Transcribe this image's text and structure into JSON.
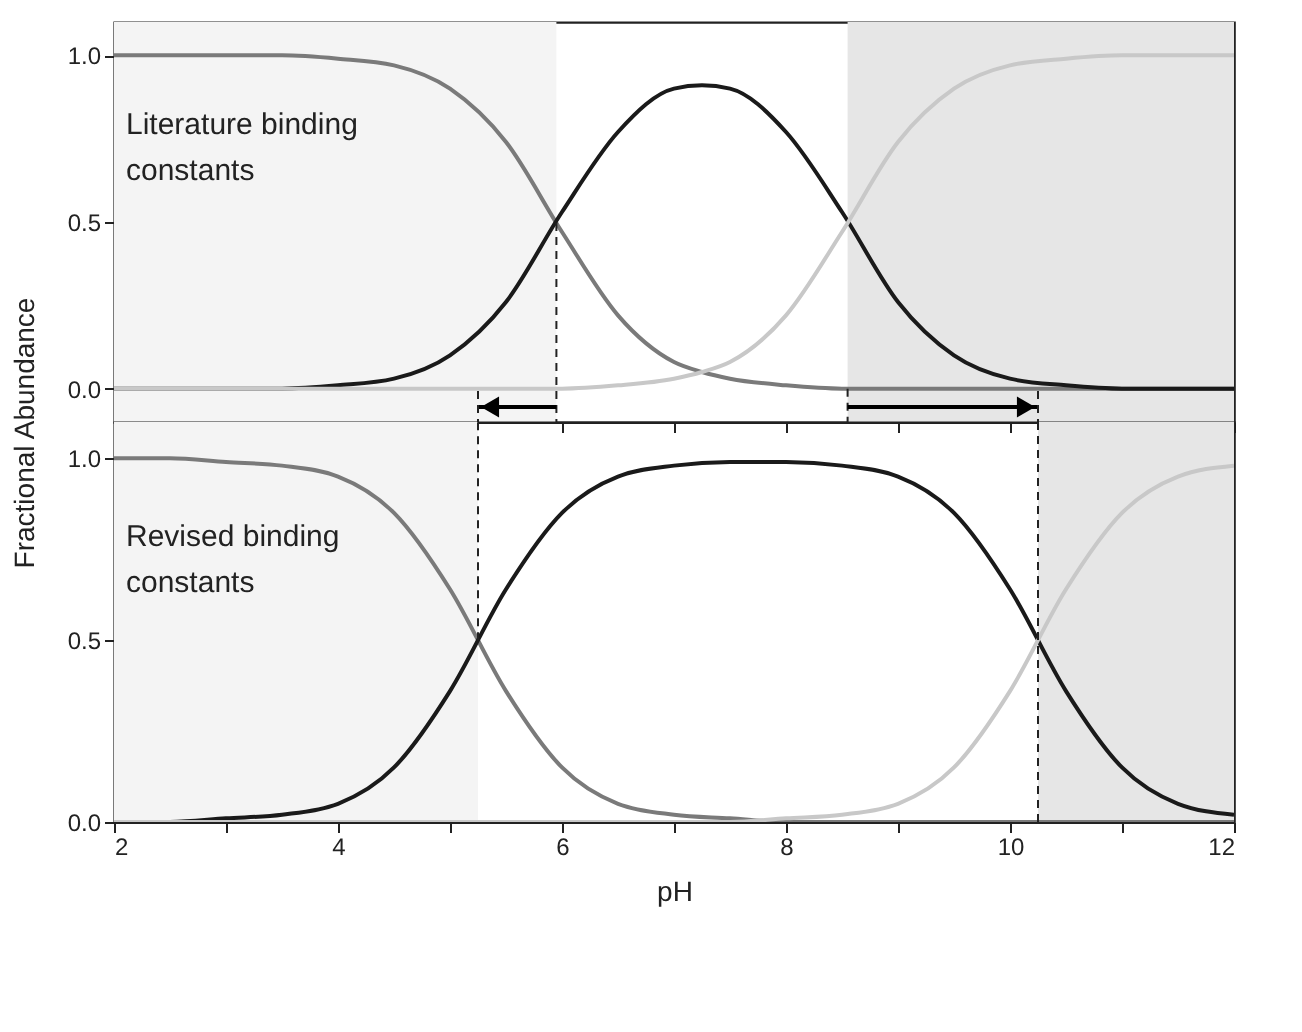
{
  "chart_data": [
    {
      "type": "line",
      "ylabel": "Fractional Abundance",
      "annotations": [
        "Literature binding constants"
      ],
      "x": [
        2,
        2.5,
        3,
        3.5,
        4,
        4.5,
        5,
        5.5,
        6,
        6.5,
        7,
        7.25,
        7.5,
        8,
        8.5,
        9,
        9.5,
        10,
        10.5,
        11,
        11.5,
        12
      ],
      "series": [
        {
          "color": "#7a7a7a",
          "values": [
            1.0,
            1.0,
            1.0,
            1.0,
            0.99,
            0.97,
            0.9,
            0.74,
            0.47,
            0.22,
            0.08,
            0.05,
            0.03,
            0.01,
            0.0,
            0.0,
            0.0,
            0.0,
            0.0,
            0.0,
            0.0,
            0.0
          ]
        },
        {
          "color": "#1a1a1a",
          "values": [
            0.0,
            0.0,
            0.0,
            0.0,
            0.01,
            0.03,
            0.1,
            0.26,
            0.53,
            0.77,
            0.9,
            0.91,
            0.9,
            0.77,
            0.53,
            0.26,
            0.1,
            0.03,
            0.01,
            0.0,
            0.0,
            0.0
          ]
        },
        {
          "color": "#c8c8c8",
          "values": [
            0.0,
            0.0,
            0.0,
            0.0,
            0.0,
            0.0,
            0.0,
            0.0,
            0.0,
            0.01,
            0.03,
            0.05,
            0.08,
            0.22,
            0.47,
            0.74,
            0.9,
            0.97,
            0.99,
            1.0,
            1.0,
            1.0
          ]
        }
      ],
      "xlim": [
        2,
        12
      ],
      "xticks": [
        2,
        {
          "value": 3,
          "label": null
        },
        4,
        {
          "value": 5,
          "label": null
        },
        6,
        {
          "value": 7,
          "label": null
        },
        8,
        {
          "value": 9,
          "label": null
        },
        10,
        {
          "value": 11,
          "label": null
        },
        12
      ],
      "ylim": [
        -0.1,
        1.1
      ],
      "yticks": [
        {
          "value": 0,
          "label": "0.0"
        },
        {
          "value": 0.5,
          "label": "0.5"
        },
        {
          "value": 1,
          "label": "1.0"
        }
      ],
      "tick_labels": "y",
      "grid": false,
      "line_style": "solid",
      "bands": [
        {
          "axis": "x",
          "from": 2,
          "to": 5.95,
          "color": "#f4f4f4"
        },
        {
          "axis": "x",
          "from": 8.55,
          "to": 12,
          "color": "#e6e6e6"
        }
      ],
      "ref_lines": [
        {
          "axis": "x",
          "value": 5.95,
          "color": "#222222",
          "line_style": "dashed"
        },
        {
          "axis": "x",
          "value": 8.55,
          "color": "#222222",
          "line_style": "dashed"
        }
      ]
    },
    {
      "type": "line",
      "xlabel": "pH",
      "annotations": [
        "Revised binding constants"
      ],
      "x": [
        2,
        2.5,
        3,
        3.5,
        4,
        4.5,
        5,
        5.5,
        6,
        6.5,
        7,
        7.5,
        8,
        8.5,
        9,
        9.5,
        10,
        10.5,
        11,
        11.5,
        12
      ],
      "series": [
        {
          "color": "#7a7a7a",
          "values": [
            1.0,
            1.0,
            0.99,
            0.98,
            0.95,
            0.85,
            0.64,
            0.36,
            0.15,
            0.05,
            0.02,
            0.01,
            0.0,
            0.0,
            0.0,
            0.0,
            0.0,
            0.0,
            0.0,
            0.0,
            0.0
          ]
        },
        {
          "color": "#1a1a1a",
          "values": [
            0.0,
            0.0,
            0.01,
            0.02,
            0.05,
            0.15,
            0.36,
            0.64,
            0.85,
            0.95,
            0.98,
            0.99,
            0.99,
            0.98,
            0.95,
            0.85,
            0.64,
            0.36,
            0.15,
            0.05,
            0.02
          ]
        },
        {
          "color": "#c8c8c8",
          "values": [
            0.0,
            0.0,
            0.0,
            0.0,
            0.0,
            0.0,
            0.0,
            0.0,
            0.0,
            0.0,
            0.0,
            0.0,
            0.01,
            0.02,
            0.05,
            0.15,
            0.36,
            0.64,
            0.85,
            0.95,
            0.98
          ]
        }
      ],
      "xlim": [
        2,
        12
      ],
      "xticks": [
        2,
        {
          "value": 3,
          "label": null
        },
        4,
        {
          "value": 5,
          "label": null
        },
        6,
        {
          "value": 7,
          "label": null
        },
        8,
        {
          "value": 9,
          "label": null
        },
        10,
        {
          "value": 11,
          "label": null
        },
        12
      ],
      "ylim": [
        0,
        1.1
      ],
      "yticks": [
        {
          "value": 0,
          "label": "0.0"
        },
        {
          "value": 0.5,
          "label": "0.5"
        },
        {
          "value": 1,
          "label": "1.0"
        }
      ],
      "grid": false,
      "line_style": "solid",
      "bands": [
        {
          "axis": "x",
          "from": 2,
          "to": 5.25,
          "color": "#f4f4f4"
        },
        {
          "axis": "x",
          "from": 10.25,
          "to": 12,
          "color": "#e6e6e6"
        }
      ],
      "ref_lines": [
        {
          "axis": "x",
          "value": 5.25,
          "color": "#222222",
          "line_style": "dashed"
        },
        {
          "axis": "x",
          "value": 10.25,
          "color": "#222222",
          "line_style": "dashed"
        }
      ]
    }
  ]
}
